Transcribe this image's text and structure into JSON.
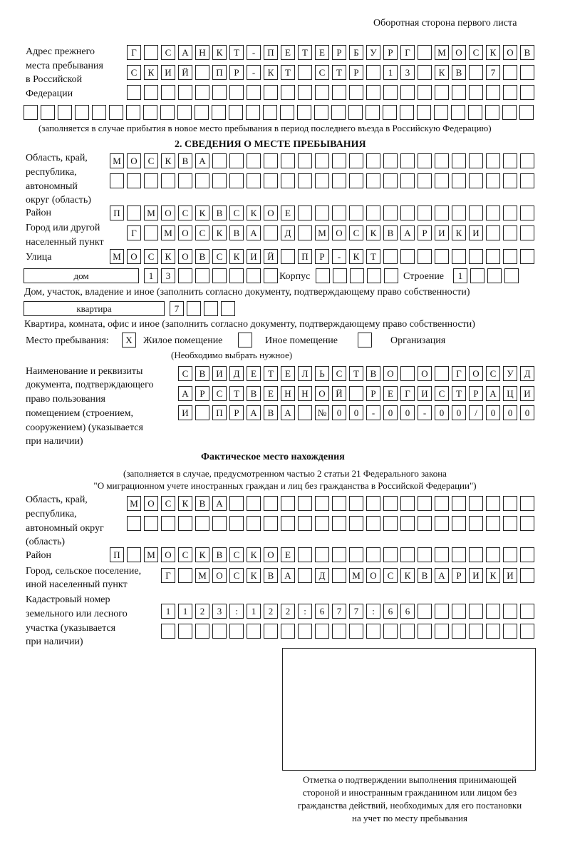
{
  "header": "Оборотная сторона первого листа",
  "prev_address": {
    "label": [
      "Адрес прежнего",
      "места пребывания",
      "в Российской",
      "Федерации"
    ],
    "rows": [
      [
        "Г",
        "",
        "С",
        "А",
        "Н",
        "К",
        "Т",
        "-",
        "П",
        "Е",
        "Т",
        "Е",
        "Р",
        "Б",
        "У",
        "Р",
        "Г",
        "",
        "М",
        "О",
        "С",
        "К",
        "О",
        "В"
      ],
      [
        "С",
        "К",
        "И",
        "Й",
        "",
        "П",
        "Р",
        "-",
        "К",
        "Т",
        "",
        "С",
        "Т",
        "Р",
        "",
        "1",
        "3",
        "",
        "К",
        "В",
        "",
        "7",
        "",
        ""
      ],
      [
        "",
        "",
        "",
        "",
        "",
        "",
        "",
        "",
        "",
        "",
        "",
        "",
        "",
        "",
        "",
        "",
        "",
        "",
        "",
        "",
        "",
        "",
        "",
        ""
      ],
      [
        "",
        "",
        "",
        "",
        "",
        "",
        "",
        "",
        "",
        "",
        "",
        "",
        "",
        "",
        "",
        "",
        "",
        "",
        "",
        "",
        "",
        "",
        "",
        "",
        "",
        "",
        "",
        "",
        "",
        ""
      ]
    ],
    "note": "(заполняется в случае прибытия в новое место пребывания в период последнего въезда в Российскую Федерацию)"
  },
  "section2": {
    "title": "2. СВЕДЕНИЯ О МЕСТЕ ПРЕБЫВАНИЯ",
    "region_label": [
      "Область, край,",
      "республика,",
      "автономный",
      "округ (область)"
    ],
    "region_rows": [
      [
        "М",
        "О",
        "С",
        "К",
        "В",
        "А",
        "",
        "",
        "",
        "",
        "",
        "",
        "",
        "",
        "",
        "",
        "",
        "",
        "",
        "",
        "",
        "",
        "",
        "",
        ""
      ],
      [
        "",
        "",
        "",
        "",
        "",
        "",
        "",
        "",
        "",
        "",
        "",
        "",
        "",
        "",
        "",
        "",
        "",
        "",
        "",
        "",
        "",
        "",
        "",
        "",
        ""
      ]
    ],
    "district_label": "Район",
    "district": [
      "П",
      "",
      "М",
      "О",
      "С",
      "К",
      "В",
      "С",
      "К",
      "О",
      "Е",
      "",
      "",
      "",
      "",
      "",
      "",
      "",
      "",
      "",
      "",
      "",
      "",
      "",
      ""
    ],
    "city_label": [
      "Город или другой",
      "населенный пункт"
    ],
    "city": [
      "Г",
      "",
      "М",
      "О",
      "С",
      "К",
      "В",
      "А",
      "",
      "Д",
      "",
      "М",
      "О",
      "С",
      "К",
      "В",
      "А",
      "Р",
      "И",
      "К",
      "И",
      "",
      "",
      ""
    ],
    "street_label": "Улица",
    "street": [
      "М",
      "О",
      "С",
      "К",
      "О",
      "В",
      "С",
      "К",
      "И",
      "Й",
      "",
      "П",
      "Р",
      "-",
      "К",
      "Т",
      "",
      "",
      "",
      "",
      "",
      "",
      "",
      "",
      ""
    ],
    "house_type": "дом",
    "house": [
      "1",
      "3",
      "",
      "",
      "",
      "",
      "",
      ""
    ],
    "korpus_label": "Корпус",
    "korpus": [
      "",
      "",
      "",
      "",
      ""
    ],
    "building_label": "Строение",
    "building": [
      "1",
      "",
      "",
      ""
    ],
    "house_note": "Дом, участок, владение и иное (заполнить согласно документу, подтверждающему право собственности)",
    "flat_type": "квартира",
    "flat": [
      "7",
      "",
      "",
      ""
    ],
    "flat_note": "Квартира, комната, офис и иное (заполнить согласно документу, подтверждающему право собственности)",
    "place_label": "Место пребывания:",
    "place_options": [
      {
        "label": "Жилое помещение",
        "mark": "X"
      },
      {
        "label": "Иное помещение",
        "mark": ""
      },
      {
        "label": "Организация",
        "mark": ""
      }
    ],
    "place_note": "(Необходимо выбрать нужное)",
    "doc_label": [
      "Наименование и реквизиты",
      "документа, подтверждающего",
      "право пользования",
      "помещением (строением,",
      "сооружением) (указывается",
      "при наличии)"
    ],
    "doc_rows": [
      [
        "С",
        "В",
        "И",
        "Д",
        "Е",
        "Т",
        "Е",
        "Л",
        "Ь",
        "С",
        "Т",
        "В",
        "О",
        "",
        "О",
        "",
        "Г",
        "О",
        "С",
        "У",
        "Д"
      ],
      [
        "А",
        "Р",
        "С",
        "Т",
        "В",
        "Е",
        "Н",
        "Н",
        "О",
        "Й",
        "",
        "Р",
        "Е",
        "Г",
        "И",
        "С",
        "Т",
        "Р",
        "А",
        "Ц",
        "И"
      ],
      [
        "И",
        "",
        "П",
        "Р",
        "А",
        "В",
        "А",
        "",
        "№",
        "0",
        "0",
        "-",
        "0",
        "0",
        "-",
        "0",
        "0",
        "/",
        "0",
        "0",
        "0"
      ]
    ]
  },
  "actual": {
    "title": "Фактическое место нахождения",
    "note": [
      "(заполняется в случае, предусмотренном частью 2 статьи 21 Федерального закона",
      "\"О миграционном учете иностранных граждан и лиц без гражданства в Российской Федерации\")"
    ],
    "region_label": [
      "Область, край,",
      "республика,",
      "автономный округ",
      "(область)"
    ],
    "region_rows": [
      [
        "М",
        "О",
        "С",
        "К",
        "В",
        "А",
        "",
        "",
        "",
        "",
        "",
        "",
        "",
        "",
        "",
        "",
        "",
        "",
        "",
        "",
        "",
        "",
        "",
        ""
      ],
      [
        "",
        "",
        "",
        "",
        "",
        "",
        "",
        "",
        "",
        "",
        "",
        "",
        "",
        "",
        "",
        "",
        "",
        "",
        "",
        "",
        "",
        "",
        "",
        ""
      ]
    ],
    "district_label": "Район",
    "district": [
      "П",
      "",
      "М",
      "О",
      "С",
      "К",
      "В",
      "С",
      "К",
      "О",
      "Е",
      "",
      "",
      "",
      "",
      "",
      "",
      "",
      "",
      "",
      "",
      "",
      "",
      "",
      ""
    ],
    "city_label": [
      "Город, сельское поселение,",
      "иной населенный пункт"
    ],
    "city": [
      "Г",
      "",
      "М",
      "О",
      "С",
      "К",
      "В",
      "А",
      "",
      "Д",
      "",
      "М",
      "О",
      "С",
      "К",
      "В",
      "А",
      "Р",
      "И",
      "К",
      "И",
      ""
    ],
    "cadastre_label": [
      "Кадастровый номер",
      "земельного или лесного",
      "участка (указывается",
      "при наличии)"
    ],
    "cadastre_rows": [
      [
        "1",
        "1",
        "2",
        "3",
        ":",
        "1",
        "2",
        "2",
        ":",
        "6",
        "7",
        "7",
        ":",
        "6",
        "6",
        "",
        "",
        "",
        "",
        "",
        "",
        ""
      ],
      [
        "",
        "",
        "",
        "",
        "",
        "",
        "",
        "",
        "",
        "",
        "",
        "",
        "",
        "",
        "",
        "",
        "",
        "",
        "",
        "",
        "",
        ""
      ]
    ]
  },
  "stamp_caption": [
    "Отметка о подтверждении выполнения принимающей",
    "стороной и иностранным гражданином или лицом без",
    "гражданства действий, необходимых для его постановки",
    "на учет по месту пребывания"
  ]
}
